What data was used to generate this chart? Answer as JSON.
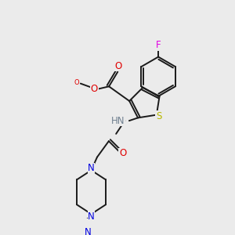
{
  "bg": "#ebebeb",
  "bond_color": "#1a1a1a",
  "colors": {
    "N": "#0000e0",
    "O": "#e00000",
    "S": "#b8b800",
    "F": "#e000e0",
    "H": "#708090",
    "C": "#1a1a1a"
  },
  "lw": 1.4,
  "fs": 8.5
}
